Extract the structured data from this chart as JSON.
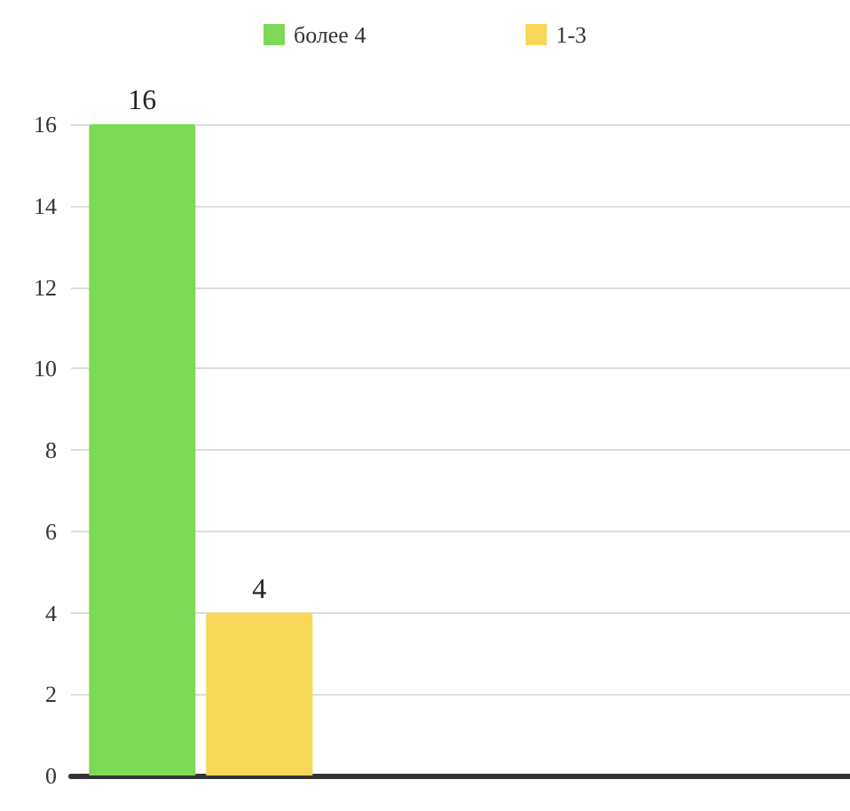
{
  "chart_data": {
    "type": "bar",
    "categories": [
      null,
      null,
      null
    ],
    "series": [
      {
        "name": "более 4",
        "color": "#7ed957",
        "values": [
          16,
          null,
          null
        ]
      },
      {
        "name": "1-3",
        "color": "#f7d757",
        "values": [
          4,
          null,
          null
        ]
      }
    ],
    "ylim": [
      0,
      16
    ],
    "yticks": [
      0,
      2,
      4,
      6,
      8,
      10,
      12,
      14,
      16
    ],
    "grid": "y",
    "legend": "top",
    "data_labels": true
  }
}
